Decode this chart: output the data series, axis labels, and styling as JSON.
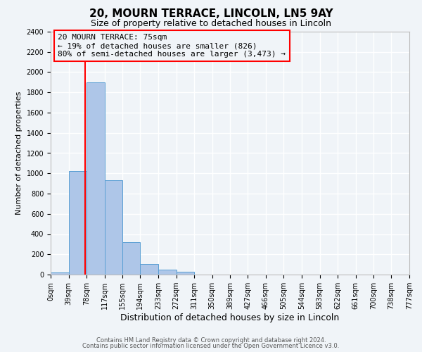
{
  "title1": "20, MOURN TERRACE, LINCOLN, LN5 9AY",
  "title2": "Size of property relative to detached houses in Lincoln",
  "xlabel": "Distribution of detached houses by size in Lincoln",
  "ylabel": "Number of detached properties",
  "bin_edges": [
    0,
    39,
    78,
    117,
    155,
    194,
    233,
    272,
    311,
    350,
    389,
    427,
    466,
    505,
    544,
    583,
    622,
    661,
    700,
    738,
    777
  ],
  "bin_labels": [
    "0sqm",
    "39sqm",
    "78sqm",
    "117sqm",
    "155sqm",
    "194sqm",
    "233sqm",
    "272sqm",
    "311sqm",
    "350sqm",
    "389sqm",
    "427sqm",
    "466sqm",
    "505sqm",
    "544sqm",
    "583sqm",
    "622sqm",
    "661sqm",
    "700sqm",
    "738sqm",
    "777sqm"
  ],
  "bar_heights": [
    20,
    1025,
    1900,
    930,
    320,
    105,
    50,
    25,
    0,
    0,
    0,
    0,
    0,
    0,
    0,
    0,
    0,
    0,
    0,
    0
  ],
  "bar_color": "#aec6e8",
  "bar_edge_color": "#5a9fd4",
  "property_line_x": 75,
  "property_line_color": "red",
  "ylim": [
    0,
    2400
  ],
  "yticks": [
    0,
    200,
    400,
    600,
    800,
    1000,
    1200,
    1400,
    1600,
    1800,
    2000,
    2200,
    2400
  ],
  "annotation_text": "20 MOURN TERRACE: 75sqm\n← 19% of detached houses are smaller (826)\n80% of semi-detached houses are larger (3,473) →",
  "annotation_box_color": "red",
  "footer1": "Contains HM Land Registry data © Crown copyright and database right 2024.",
  "footer2": "Contains public sector information licensed under the Open Government Licence v3.0.",
  "background_color": "#f0f4f8",
  "grid_color": "white",
  "title1_fontsize": 11,
  "title2_fontsize": 9,
  "ylabel_fontsize": 8,
  "xlabel_fontsize": 9,
  "tick_fontsize": 7,
  "annot_fontsize": 8
}
